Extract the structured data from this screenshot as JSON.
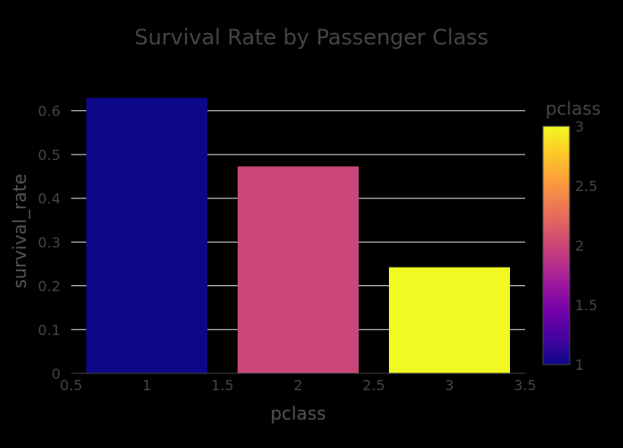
{
  "chart_data": {
    "type": "bar",
    "title": "Survival Rate by Passenger Class",
    "xlabel": "pclass",
    "ylabel": "survival_rate",
    "x": [
      1,
      2,
      3
    ],
    "values": [
      0.6296,
      0.4728,
      0.2424
    ],
    "xlim": [
      0.5,
      3.5
    ],
    "ylim": [
      0,
      0.65
    ],
    "x_ticks": [
      0.5,
      1,
      1.5,
      2,
      2.5,
      3,
      3.5
    ],
    "x_tick_labels": [
      "0.5",
      "1",
      "1.5",
      "2",
      "2.5",
      "3",
      "3.5"
    ],
    "y_ticks": [
      0,
      0.1,
      0.2,
      0.3,
      0.4,
      0.5,
      0.6
    ],
    "y_tick_labels": [
      "0",
      "0.1",
      "0.2",
      "0.3",
      "0.4",
      "0.5",
      "0.6"
    ],
    "grid": true,
    "colorbar": {
      "title": "pclass",
      "range": [
        1,
        3
      ],
      "ticks": [
        1,
        1.5,
        2,
        2.5,
        3
      ],
      "tick_labels": [
        "1",
        "1.5",
        "2",
        "2.5",
        "3"
      ],
      "colorscale": [
        "#0d0887",
        "#46039f",
        "#7201a8",
        "#9c179e",
        "#bd3786",
        "#d8576b",
        "#ed7953",
        "#fb9f3a",
        "#fdca26",
        "#f0f921"
      ]
    },
    "colors": {
      "background": "#000000",
      "grid": "#dcdcdc",
      "text": "#444444",
      "axis_title": "#555555"
    }
  }
}
